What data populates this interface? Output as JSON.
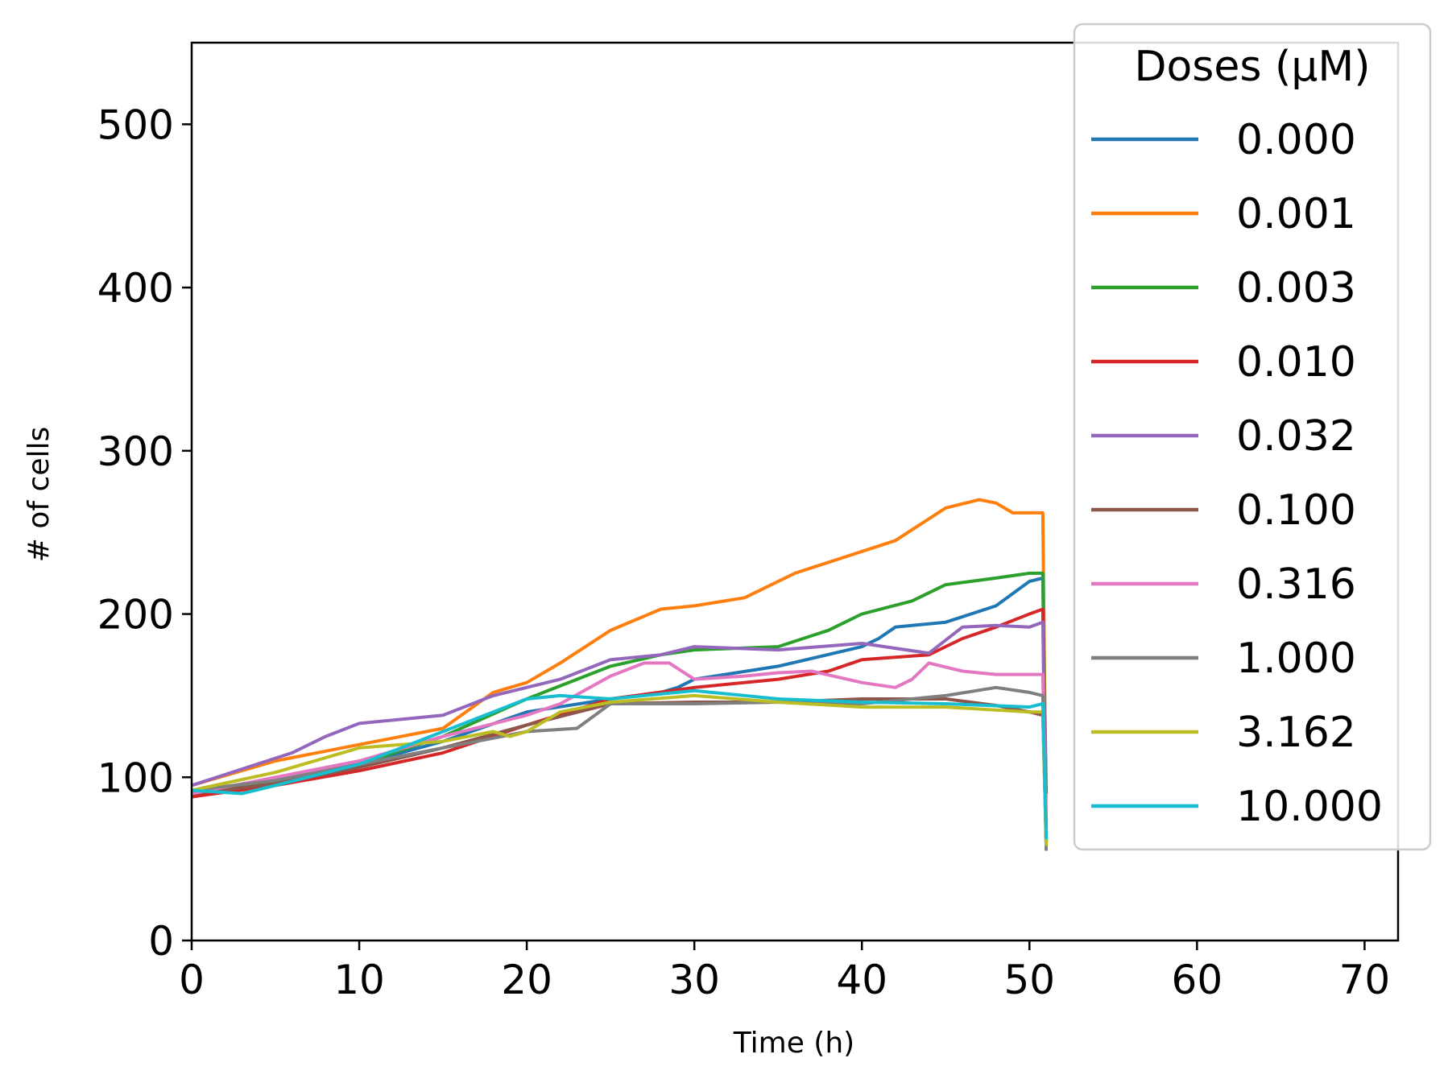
{
  "chart_data": {
    "type": "line",
    "title": "",
    "xlabel": "Time (h)",
    "ylabel": "# of cells",
    "xlim": [
      0,
      72
    ],
    "ylim": [
      0,
      550
    ],
    "xticks": [
      0,
      10,
      20,
      30,
      40,
      50,
      60,
      70
    ],
    "yticks": [
      0,
      100,
      200,
      300,
      400,
      500
    ],
    "grid": false,
    "legend": {
      "title": "Doses (µM)",
      "placement": "top-right"
    },
    "series": [
      {
        "name": "0.000",
        "color": "#1f77b4",
        "x": [
          0,
          5,
          10,
          15,
          20,
          25,
          28,
          29,
          30,
          35,
          40,
          41,
          42,
          45,
          48,
          50,
          50.8,
          51
        ],
        "y": [
          88,
          97,
          108,
          122,
          140,
          148,
          152,
          155,
          160,
          168,
          180,
          185,
          192,
          195,
          205,
          220,
          222,
          90
        ]
      },
      {
        "name": "0.001",
        "color": "#ff7f0e",
        "x": [
          0,
          5,
          10,
          15,
          18,
          20,
          22,
          25,
          28,
          30,
          33,
          36,
          39,
          42,
          45,
          47,
          48,
          49,
          50,
          50.8,
          51
        ],
        "y": [
          95,
          110,
          120,
          130,
          152,
          158,
          170,
          190,
          203,
          205,
          210,
          225,
          235,
          245,
          265,
          270,
          268,
          262,
          262,
          262,
          62
        ]
      },
      {
        "name": "0.003",
        "color": "#2ca02c",
        "x": [
          0,
          5,
          10,
          15,
          20,
          25,
          28,
          30,
          35,
          38,
          40,
          43,
          45,
          48,
          50,
          50.8,
          51
        ],
        "y": [
          90,
          98,
          108,
          125,
          148,
          168,
          175,
          178,
          180,
          190,
          200,
          208,
          218,
          222,
          225,
          225,
          60
        ]
      },
      {
        "name": "0.010",
        "color": "#d62728",
        "x": [
          0,
          5,
          10,
          15,
          20,
          25,
          30,
          35,
          38,
          40,
          44,
          46,
          48,
          50,
          50.8,
          51
        ],
        "y": [
          88,
          95,
          104,
          115,
          132,
          148,
          155,
          160,
          165,
          172,
          175,
          185,
          192,
          200,
          203,
          60
        ]
      },
      {
        "name": "0.032",
        "color": "#9467bd",
        "x": [
          0,
          3,
          6,
          8,
          10,
          15,
          18,
          22,
          25,
          28,
          30,
          35,
          40,
          44,
          46,
          48,
          50,
          50.8,
          51
        ],
        "y": [
          95,
          105,
          115,
          125,
          133,
          138,
          150,
          160,
          172,
          175,
          180,
          178,
          182,
          176,
          192,
          193,
          192,
          195,
          60
        ]
      },
      {
        "name": "0.100",
        "color": "#8c564b",
        "x": [
          0,
          5,
          10,
          15,
          20,
          25,
          30,
          35,
          40,
          45,
          48,
          50,
          50.8,
          51
        ],
        "y": [
          90,
          96,
          106,
          118,
          132,
          145,
          146,
          146,
          148,
          148,
          144,
          140,
          138,
          60
        ]
      },
      {
        "name": "0.316",
        "color": "#e377c2",
        "x": [
          0,
          5,
          10,
          15,
          20,
          22,
          25,
          27,
          28.5,
          30,
          33,
          35,
          37,
          40,
          42,
          43,
          44,
          46,
          48,
          50,
          50.8,
          51
        ],
        "y": [
          90,
          100,
          110,
          125,
          138,
          145,
          162,
          170,
          170,
          160,
          162,
          164,
          165,
          158,
          155,
          160,
          170,
          165,
          163,
          163,
          163,
          60
        ]
      },
      {
        "name": "1.000",
        "color": "#7f7f7f",
        "x": [
          0,
          5,
          10,
          15,
          20,
          23,
          25,
          30,
          35,
          40,
          45,
          48,
          50,
          50.8,
          51
        ],
        "y": [
          92,
          98,
          108,
          118,
          128,
          130,
          145,
          145,
          146,
          145,
          150,
          155,
          152,
          150,
          55
        ]
      },
      {
        "name": "3.162",
        "color": "#bcbd22",
        "x": [
          0,
          5,
          10,
          15,
          18,
          19,
          20,
          22,
          25,
          30,
          35,
          40,
          45,
          50,
          50.8,
          51
        ],
        "y": [
          92,
          103,
          118,
          122,
          128,
          125,
          128,
          140,
          146,
          150,
          146,
          143,
          143,
          140,
          140,
          58
        ]
      },
      {
        "name": "10.000",
        "color": "#17becf",
        "x": [
          0,
          3,
          5,
          10,
          15,
          18,
          20,
          22,
          25,
          30,
          33,
          35,
          40,
          45,
          50,
          50.8,
          51
        ],
        "y": [
          92,
          90,
          95,
          108,
          128,
          140,
          148,
          150,
          148,
          153,
          150,
          148,
          146,
          145,
          143,
          145,
          62
        ]
      }
    ]
  }
}
